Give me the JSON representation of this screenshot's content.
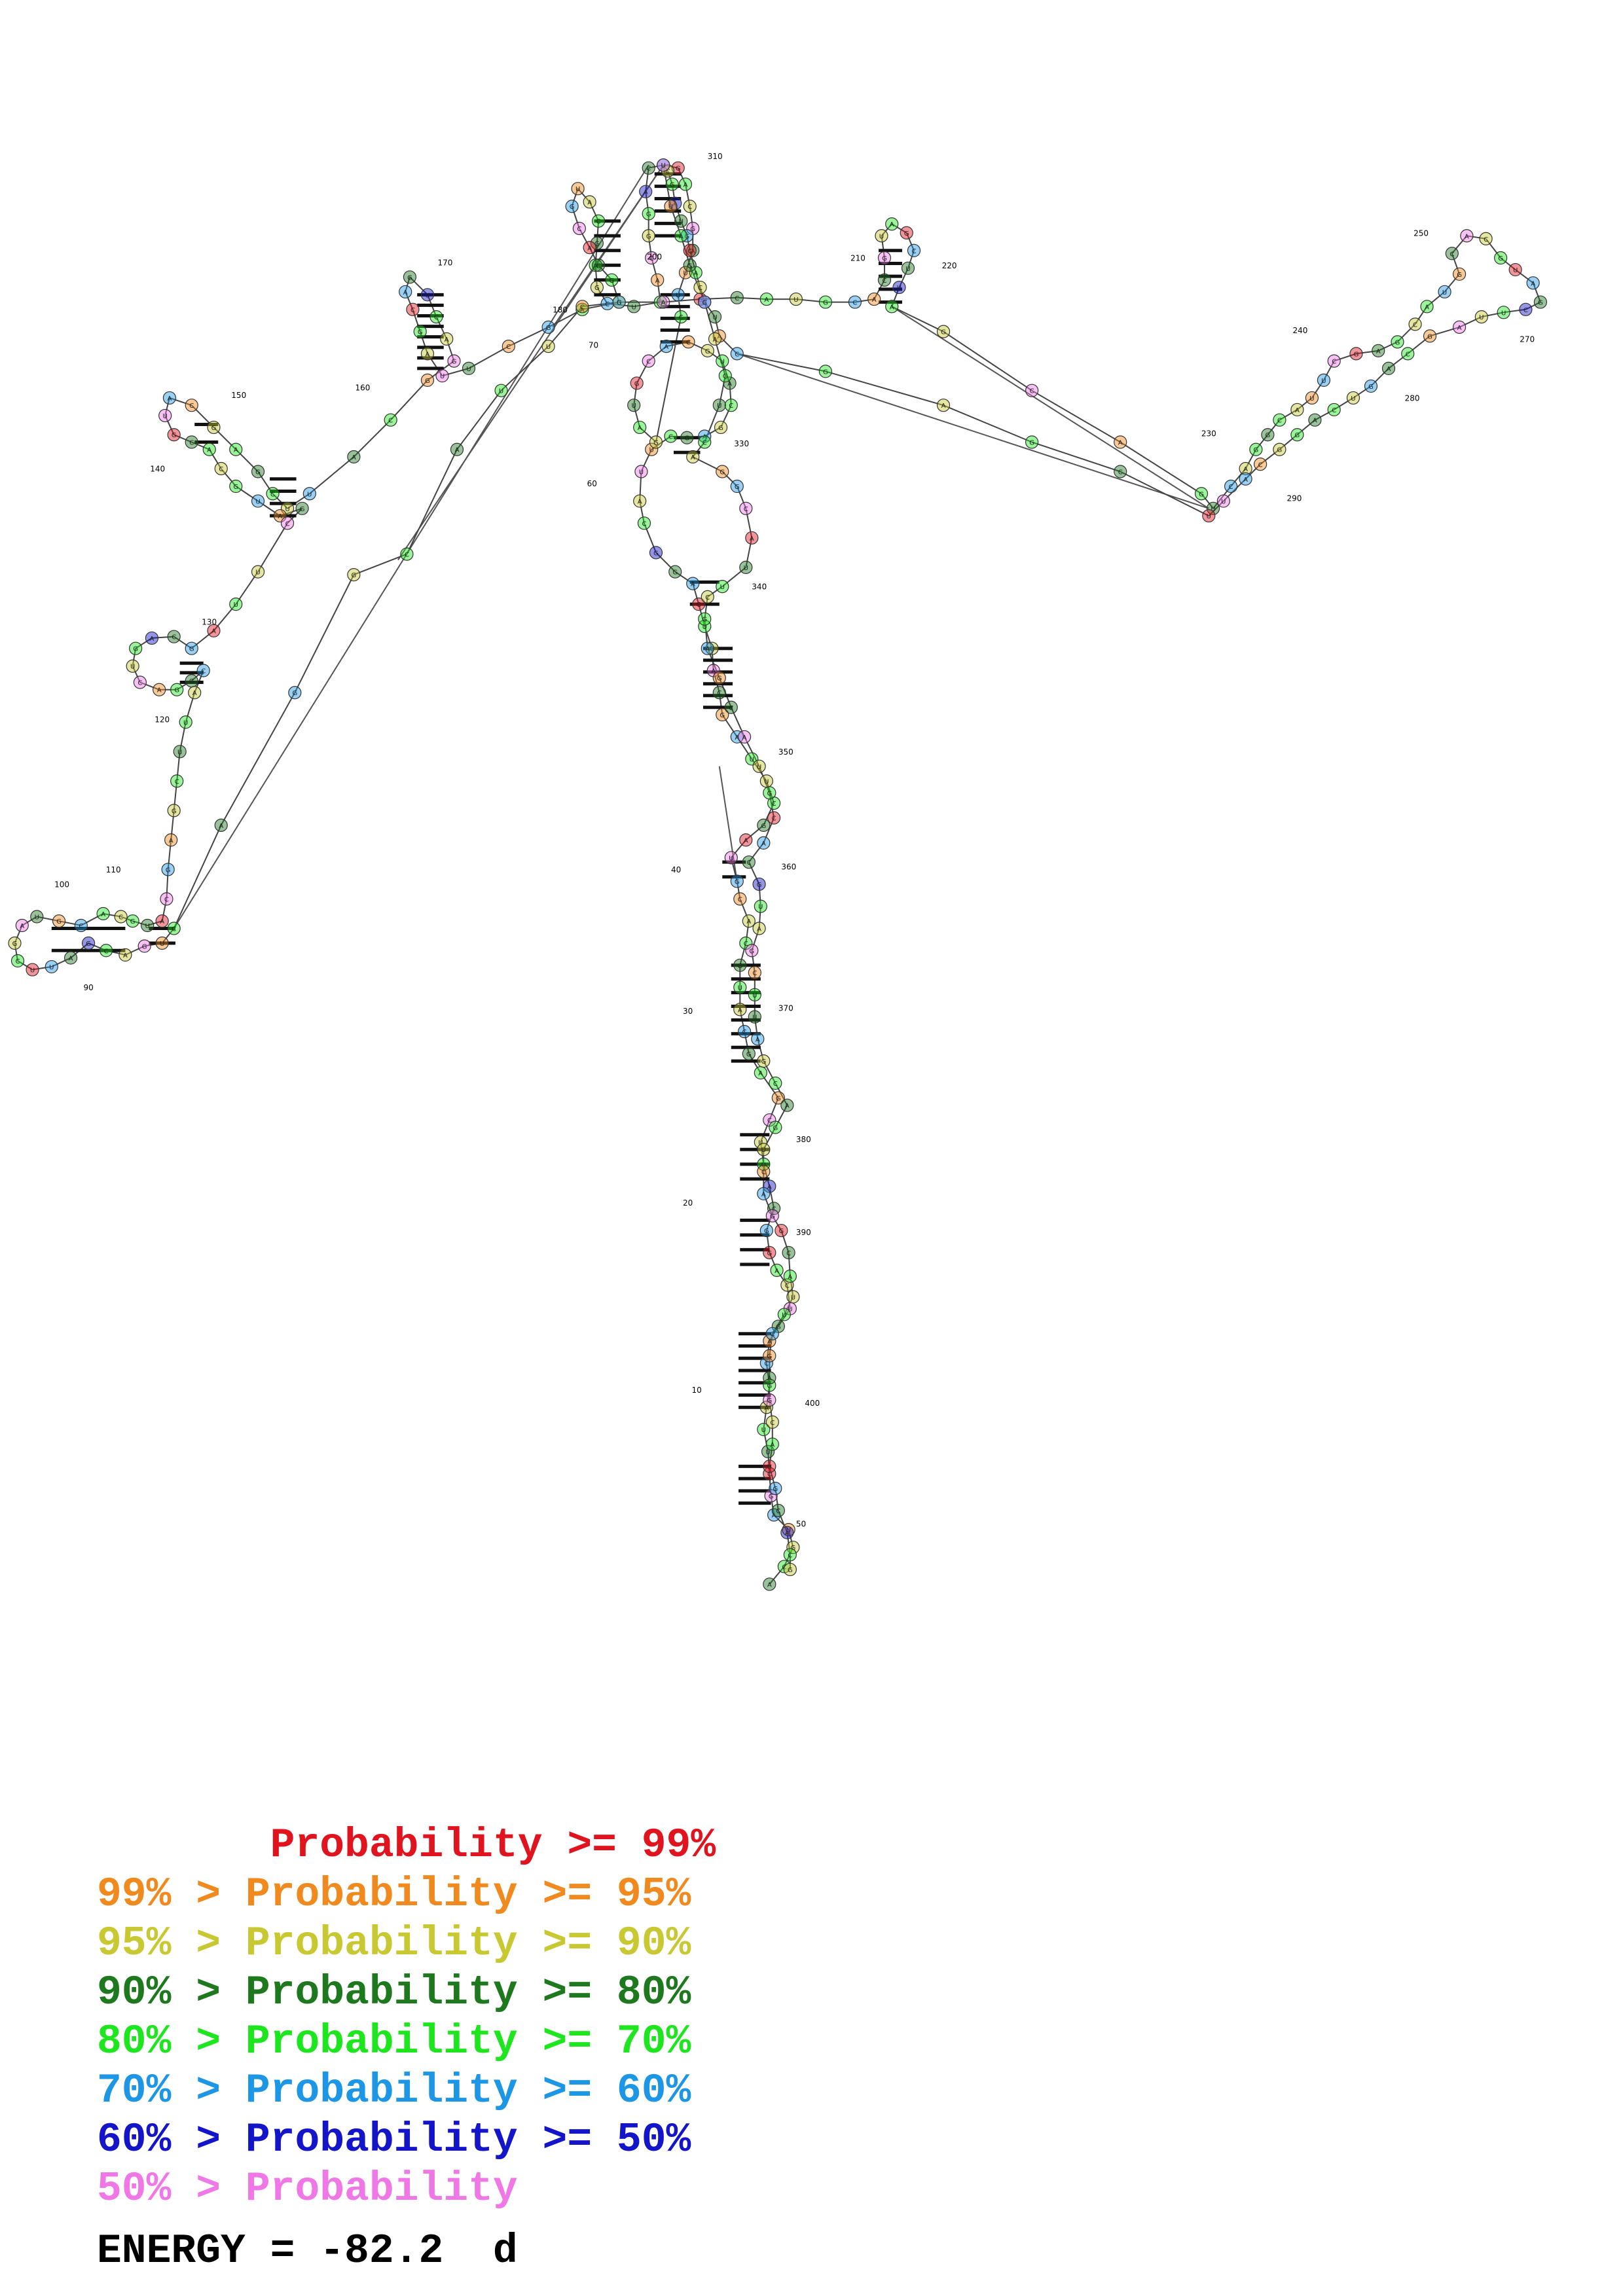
{
  "diagram": {
    "type": "rna-secondary-structure",
    "nucleotide_count": 410,
    "position_labels": [
      "10",
      "20",
      "30",
      "40",
      "50",
      "60",
      "70",
      "90",
      "100",
      "110",
      "120",
      "130",
      "140",
      "150",
      "160",
      "170",
      "180",
      "200",
      "210",
      "220",
      "230",
      "240",
      "250",
      "270",
      "280",
      "290",
      "310",
      "330",
      "340",
      "350",
      "360",
      "370",
      "380",
      "390",
      "400"
    ]
  },
  "legend": {
    "items": [
      {
        "text": "       Probability >= 99%",
        "color": "#e0141e"
      },
      {
        "text": "99% > Probability >= 95%",
        "color": "#f08a1e"
      },
      {
        "text": "95% > Probability >= 90%",
        "color": "#c8c832"
      },
      {
        "text": "90% > Probability >= 80%",
        "color": "#1e781e"
      },
      {
        "text": "80% > Probability >= 70%",
        "color": "#1ee61e"
      },
      {
        "text": "70% > Probability >= 60%",
        "color": "#1e96e6"
      },
      {
        "text": "60% > Probability >= 50%",
        "color": "#1414c8"
      },
      {
        "text": "50% > Probability",
        "color": "#f078e6"
      }
    ]
  },
  "energy": {
    "text": "ENERGY = -82.2  d"
  }
}
